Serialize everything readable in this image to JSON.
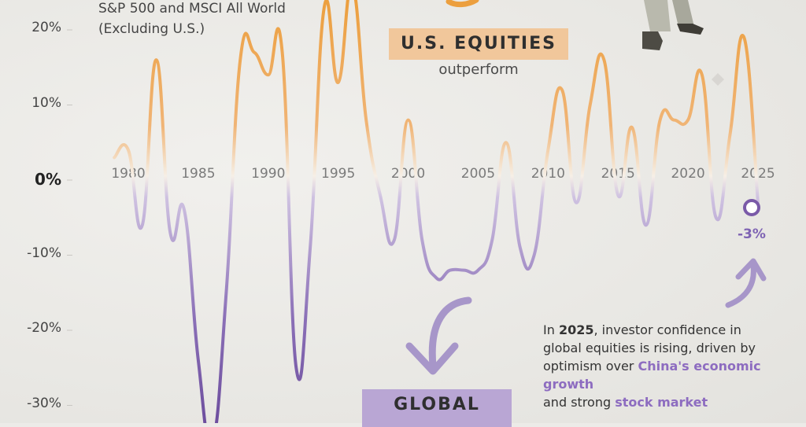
{
  "subtitle": "S&P 500 and MSCI All World (Excluding U.S.)",
  "y_ticks": [
    {
      "label": "20%",
      "value": 20
    },
    {
      "label": "10%",
      "value": 10
    },
    {
      "label": "0%",
      "value": 0
    },
    {
      "label": "-10%",
      "value": -10
    },
    {
      "label": "-20%",
      "value": -20
    },
    {
      "label": "-30%",
      "value": -30
    }
  ],
  "us_equities": {
    "label": "U.S. EQUITIES",
    "sublabel": "outperform"
  },
  "global_label": "GLOBAL",
  "end_label": "-3%",
  "callout": {
    "p1": "In ",
    "year": "2025",
    "p2": ", investor confidence in global equities is rising, driven by optimism over ",
    "hl1": "China's economic growth",
    "p3": " and strong ",
    "hl2": "stock market"
  },
  "colors": {
    "positive": "#ec9f3e",
    "negative": "#7a5aa8",
    "badge_us": "#f1c79b",
    "badge_global": "#b9a6d4"
  },
  "chart_data": {
    "type": "line",
    "title": "",
    "subtitle": "S&P 500 and MSCI All World (Excluding U.S.)",
    "xlabel": "",
    "ylabel": "",
    "x_ticks": [
      1980,
      1985,
      1990,
      1995,
      2000,
      2005,
      2010,
      2015,
      2020,
      2025
    ],
    "ylim": [
      -33,
      24
    ],
    "grid": false,
    "series": [
      {
        "x": [
          1979,
          1980,
          1981,
          1982,
          1983,
          1984,
          1985,
          1986,
          1987,
          1988,
          1989,
          1990,
          1991,
          1992,
          1993,
          1994,
          1995,
          1996,
          1997,
          1998,
          1999,
          2000,
          2001,
          2002,
          2003,
          2004,
          2005,
          2006,
          2007,
          2008,
          2009,
          2010,
          2011,
          2012,
          2013,
          2014,
          2015,
          2016,
          2017,
          2018,
          2019,
          2020,
          2021,
          2022,
          2023,
          2024,
          2025
        ],
        "values": [
          3,
          4,
          -6,
          16,
          -7,
          -4,
          -24,
          -35,
          -15,
          16,
          17,
          14,
          17,
          -25,
          -9,
          23,
          13,
          26,
          8,
          -2,
          -8,
          8,
          -8,
          -13,
          -12,
          -12,
          -12,
          -8,
          5,
          -9,
          -10,
          4,
          12,
          -3,
          10,
          16,
          -2,
          7,
          -6,
          8,
          8,
          8,
          14,
          -5,
          6,
          19,
          -3
        ]
      }
    ]
  }
}
